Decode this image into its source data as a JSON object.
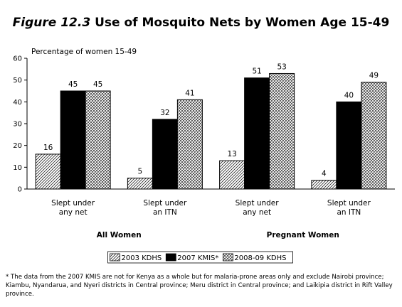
{
  "title": {
    "figure": "Figure 12.3",
    "text": "Use of Mosquito Nets by Women Age 15-49"
  },
  "footnote": "* The data from the 2007 KMIS are not for Kenya as a whole but for malaria-prone areas only and exclude Nairobi province; Kiambu, Nyandarua, and Nyeri districts in Central province; Meru district in Central province; and Laikipia district in Rift Valley province.",
  "chart_data": {
    "type": "bar",
    "ylabel": "Percentage of women 15-49",
    "ylim": [
      0,
      60
    ],
    "yticks": [
      0,
      10,
      20,
      30,
      40,
      50,
      60
    ],
    "categories": [
      "Slept under any net",
      "Slept under an ITN",
      "Slept under any net",
      "Slept under an ITN"
    ],
    "category_lines": [
      [
        "Slept under",
        "any net"
      ],
      [
        "Slept under",
        "an ITN"
      ],
      [
        "Slept under",
        "any net"
      ],
      [
        "Slept under",
        "an ITN"
      ]
    ],
    "groups": [
      {
        "label": "All Women",
        "categories": [
          0,
          1
        ]
      },
      {
        "label": "Pregnant Women",
        "categories": [
          2,
          3
        ]
      }
    ],
    "series": [
      {
        "name": "2003 KDHS",
        "values": [
          16,
          5,
          13,
          4
        ],
        "pattern": "hatch"
      },
      {
        "name": "2007 KMIS*",
        "values": [
          45,
          32,
          51,
          40
        ],
        "pattern": "solid"
      },
      {
        "name": "2008-09 KDHS",
        "values": [
          45,
          41,
          53,
          49
        ],
        "pattern": "crosshatch"
      }
    ],
    "legend_position": "bottom-center",
    "grid": false
  }
}
